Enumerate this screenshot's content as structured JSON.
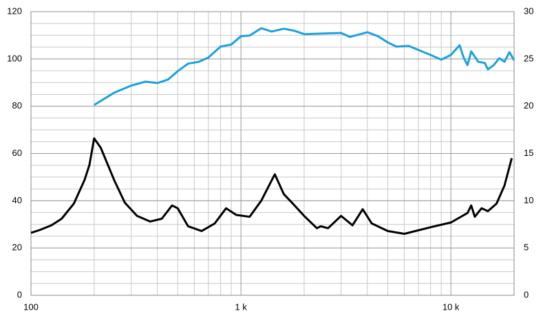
{
  "chart_data": {
    "type": "line",
    "log_x": true,
    "xlim": [
      100,
      20000
    ],
    "xticks": [
      {
        "value": 100,
        "label": "100"
      },
      {
        "value": 1000,
        "label": "1 k"
      },
      {
        "value": 10000,
        "label": "10 k"
      }
    ],
    "ylim": [
      0,
      120
    ],
    "yticks": [
      0,
      20,
      40,
      60,
      80,
      100,
      120
    ],
    "y2lim": [
      0,
      30
    ],
    "y2ticks": [
      0,
      5,
      10,
      15,
      20,
      25,
      30
    ],
    "grid": true,
    "series": [
      {
        "color": "#1ba1dc",
        "axis": "y",
        "x": [
          200,
          250,
          300,
          350,
          400,
          450,
          500,
          560,
          630,
          700,
          800,
          900,
          1000,
          1100,
          1250,
          1400,
          1600,
          1800,
          2000,
          2500,
          3000,
          3300,
          4000,
          4500,
          5000,
          5500,
          6300,
          7000,
          8000,
          9000,
          10000,
          11000,
          11500,
          12000,
          12500,
          13500,
          14500,
          15000,
          16000,
          17000,
          18000,
          19000,
          20000
        ],
        "values": [
          80.5,
          85.8,
          88.7,
          90.4,
          89.8,
          91.3,
          94.8,
          98,
          98.8,
          100.6,
          105.2,
          106.1,
          109.6,
          109.9,
          113,
          111.6,
          112.8,
          111.9,
          110.5,
          110.8,
          111,
          109.3,
          111.3,
          109.6,
          107,
          105.2,
          105.5,
          103.8,
          101.7,
          99.7,
          101.7,
          105.8,
          100.6,
          97.4,
          103.2,
          98.8,
          98.3,
          95.6,
          97.4,
          100.3,
          98.8,
          102.9,
          99.4
        ]
      },
      {
        "color": "#000000",
        "axis": "y2",
        "x": [
          100,
          110,
          125,
          140,
          160,
          180,
          190,
          200,
          215,
          250,
          280,
          320,
          370,
          420,
          470,
          500,
          560,
          650,
          750,
          850,
          950,
          1100,
          1250,
          1450,
          1600,
          1800,
          2000,
          2300,
          2400,
          2600,
          3000,
          3400,
          3800,
          4200,
          5000,
          6000,
          8000,
          10000,
          12000,
          12500,
          13000,
          14000,
          15000,
          16500,
          18000,
          19500
        ],
        "values": [
          6.6,
          6.9,
          7.4,
          8.1,
          9.7,
          12.2,
          13.8,
          16.6,
          15.6,
          12.1,
          9.8,
          8.4,
          7.8,
          8.1,
          9.5,
          9.2,
          7.3,
          6.8,
          7.6,
          9.2,
          8.5,
          8.3,
          10,
          12.8,
          10.7,
          9.5,
          8.4,
          7.1,
          7.3,
          7.1,
          8.4,
          7.4,
          9.1,
          7.6,
          6.8,
          6.5,
          7.2,
          7.7,
          8.7,
          9.5,
          8.3,
          9.2,
          8.9,
          9.7,
          11.6,
          14.5
        ]
      }
    ]
  }
}
